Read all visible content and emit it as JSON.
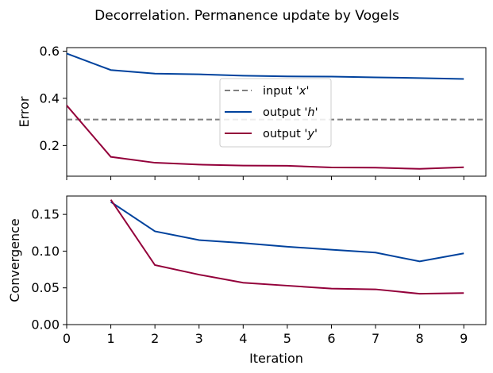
{
  "figure": {
    "title": "Decorrelation. Permanence update by Vogels"
  },
  "chart_data": [
    {
      "type": "line",
      "ylabel": "Error",
      "xlabel": "",
      "xlim": [
        0,
        9.5
      ],
      "ylim": [
        0.07,
        0.615
      ],
      "xticks": [
        0,
        1,
        2,
        3,
        4,
        5,
        6,
        7,
        8,
        9
      ],
      "yticks": [
        0.2,
        0.4,
        0.6
      ],
      "ytick_labels": [
        "0.2",
        "0.4",
        "0.6"
      ],
      "show_xtick_labels": false,
      "legend_position": "center",
      "hlines": [
        {
          "name": "input 'x'",
          "y": 0.31,
          "color": "#808080",
          "style": "dashed"
        }
      ],
      "series": [
        {
          "name": "output 'h'",
          "color": "#00429d",
          "x": [
            0,
            1,
            2,
            3,
            4,
            5,
            6,
            7,
            8,
            9
          ],
          "values": [
            0.59,
            0.52,
            0.505,
            0.502,
            0.496,
            0.493,
            0.492,
            0.489,
            0.486,
            0.482
          ]
        },
        {
          "name": "output 'y'",
          "color": "#93003a",
          "x": [
            0,
            1,
            2,
            3,
            4,
            5,
            6,
            7,
            8,
            9
          ],
          "values": [
            0.37,
            0.152,
            0.127,
            0.119,
            0.115,
            0.114,
            0.107,
            0.106,
            0.101,
            0.108
          ]
        }
      ],
      "legend": [
        {
          "label_prefix": "input '",
          "label_var": "x",
          "label_suffix": "'",
          "color": "#808080",
          "style": "dashed"
        },
        {
          "label_prefix": "output '",
          "label_var": "h",
          "label_suffix": "'",
          "color": "#00429d",
          "style": "solid"
        },
        {
          "label_prefix": "output '",
          "label_var": "y",
          "label_suffix": "'",
          "color": "#93003a",
          "style": "solid"
        }
      ]
    },
    {
      "type": "line",
      "ylabel": "Convergence",
      "xlabel": "Iteration",
      "xlim": [
        0,
        9.5
      ],
      "ylim": [
        0.0,
        0.175
      ],
      "xticks": [
        0,
        1,
        2,
        3,
        4,
        5,
        6,
        7,
        8,
        9
      ],
      "xtick_labels": [
        "0",
        "1",
        "2",
        "3",
        "4",
        "5",
        "6",
        "7",
        "8",
        "9"
      ],
      "yticks": [
        0.0,
        0.05,
        0.1,
        0.15
      ],
      "ytick_labels": [
        "0.00",
        "0.05",
        "0.10",
        "0.15"
      ],
      "show_xtick_labels": true,
      "series": [
        {
          "name": "output 'h'",
          "color": "#00429d",
          "x": [
            1,
            2,
            3,
            4,
            5,
            6,
            7,
            8,
            9
          ],
          "values": [
            0.167,
            0.127,
            0.115,
            0.111,
            0.106,
            0.102,
            0.098,
            0.086,
            0.097
          ]
        },
        {
          "name": "output 'y'",
          "color": "#93003a",
          "x": [
            1,
            2,
            3,
            4,
            5,
            6,
            7,
            8,
            9
          ],
          "values": [
            0.17,
            0.081,
            0.068,
            0.057,
            0.053,
            0.049,
            0.048,
            0.042,
            0.043
          ]
        }
      ]
    }
  ]
}
